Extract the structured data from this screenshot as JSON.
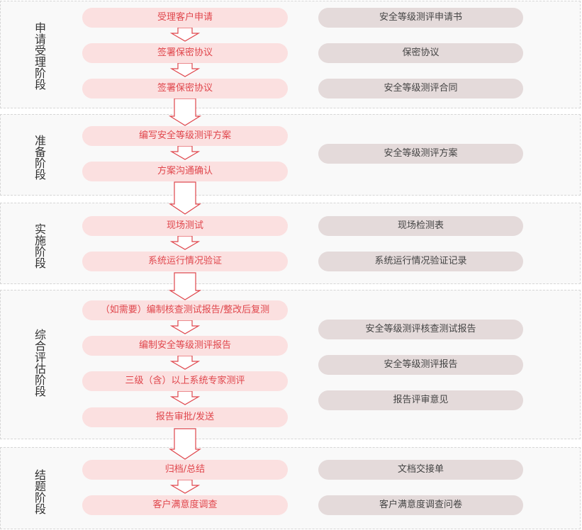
{
  "stages": [
    {
      "label": "申请受理阶段",
      "steps": [
        "受理客户申请",
        "签署保密协议",
        "签署保密协议"
      ],
      "docs": [
        "安全等级测评申请书",
        "保密协议",
        "安全等级测评合同"
      ]
    },
    {
      "label": "准备阶段",
      "steps": [
        "编写安全等级测评方案",
        "方案沟通确认"
      ],
      "docs": [
        "安全等级测评方案"
      ]
    },
    {
      "label": "实施阶段",
      "steps": [
        "现场测试",
        "系统运行情况验证"
      ],
      "docs": [
        "现场检测表",
        "系统运行情况验证记录"
      ]
    },
    {
      "label": "综合评估阶段",
      "steps": [
        "（如需要）编制核查测试报告/整改后复测",
        "编制安全等级测评报告",
        "三级（含）以上系统专家测评",
        "报告审批/发送"
      ],
      "docs": [
        "安全等级测评核查测试报告",
        "安全等级测评报告",
        "报告评审意见"
      ]
    },
    {
      "label": "结题阶段",
      "steps": [
        "归档/总结",
        "客户满意度调查"
      ],
      "docs": [
        "文档交接单",
        "客户满意度调查问卷"
      ]
    }
  ],
  "colors": {
    "step_fill": "#fbe0e0",
    "step_text": "#e0464c",
    "doc_fill": "#e4dada",
    "doc_text": "#444444",
    "arrow_stroke": "#e0464c"
  }
}
